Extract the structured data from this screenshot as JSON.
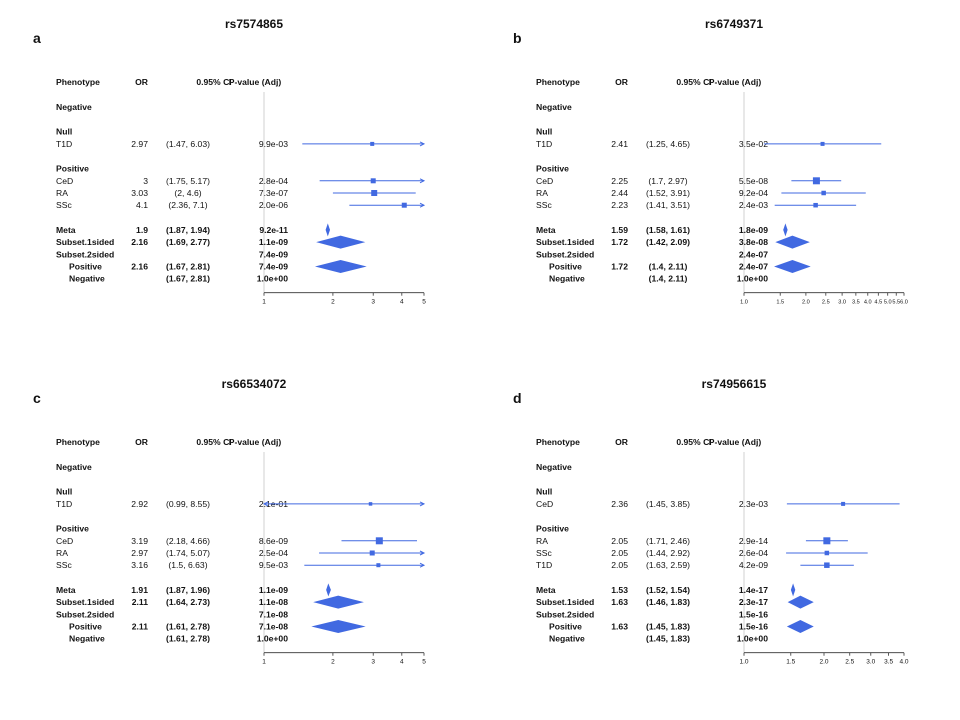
{
  "colors": {
    "mark": "#4169e1",
    "refline": "#d0d0d0",
    "text": "#111111"
  },
  "headers": {
    "phenotype": "Phenotype",
    "or": "OR",
    "ci": "0.95% CI",
    "p": "P-value (Adj)"
  },
  "chart_data": [
    {
      "type": "forest",
      "panel_letter": "a",
      "title": "rs7574865",
      "xscale": "log",
      "xlim": [
        1,
        5
      ],
      "ticks": [
        "1",
        "2",
        "3",
        "4",
        "5"
      ],
      "rows": [
        {
          "kind": "section",
          "label": "Negative"
        },
        {
          "kind": "gap"
        },
        {
          "kind": "section",
          "label": "Null"
        },
        {
          "kind": "study",
          "label": "T1D",
          "or": "2.97",
          "ci": "(1.47, 6.03)",
          "p": "9.9e-03",
          "est": 2.97,
          "lo": 1.47,
          "hi": 6.03,
          "w": 0.8
        },
        {
          "kind": "gap"
        },
        {
          "kind": "section",
          "label": "Positive"
        },
        {
          "kind": "study",
          "label": "CeD",
          "or": "3",
          "ci": "(1.75, 5.17)",
          "p": "2.8e-04",
          "est": 3.0,
          "lo": 1.75,
          "hi": 5.17,
          "w": 1.0
        },
        {
          "kind": "study",
          "label": "RA",
          "or": "3.03",
          "ci": "(2, 4.6)",
          "p": "7.3e-07",
          "est": 3.03,
          "lo": 2.0,
          "hi": 4.6,
          "w": 1.2
        },
        {
          "kind": "study",
          "label": "SSc",
          "or": "4.1",
          "ci": "(2.36, 7.1)",
          "p": "2.0e-06",
          "est": 4.1,
          "lo": 2.36,
          "hi": 7.1,
          "w": 1.0
        },
        {
          "kind": "gap"
        },
        {
          "kind": "summary",
          "label": "Meta",
          "or": "1.9",
          "ci": "(1.87, 1.94)",
          "p": "9.2e-11",
          "est": 1.9,
          "lo": 1.87,
          "hi": 1.94
        },
        {
          "kind": "summary",
          "label": "Subset.1sided",
          "or": "2.16",
          "ci": "(1.69, 2.77)",
          "p": "1.1e-09",
          "est": 2.16,
          "lo": 1.69,
          "hi": 2.77
        },
        {
          "kind": "summary",
          "label": "Subset.2sided",
          "or": "",
          "ci": "",
          "p": "7.4e-09"
        },
        {
          "kind": "summary",
          "label": "Positive",
          "indent": true,
          "or": "2.16",
          "ci": "(1.67, 2.81)",
          "p": "7.4e-09",
          "est": 2.16,
          "lo": 1.67,
          "hi": 2.81
        },
        {
          "kind": "summary",
          "label": "Negative",
          "indent": true,
          "or": "",
          "ci": "(1.67, 2.81)",
          "p": "1.0e+00"
        }
      ]
    },
    {
      "type": "forest",
      "panel_letter": "b",
      "title": "rs6749371",
      "xscale": "log",
      "xlim": [
        1,
        6
      ],
      "ticks": [
        "1.0",
        "1.5",
        "2.0",
        "2.5",
        "3.0",
        "3.5",
        "4.0",
        "4.5",
        "5.0",
        "5.5",
        "6.0"
      ],
      "rows": [
        {
          "kind": "section",
          "label": "Negative"
        },
        {
          "kind": "gap"
        },
        {
          "kind": "section",
          "label": "Null"
        },
        {
          "kind": "study",
          "label": "T1D",
          "or": "2.41",
          "ci": "(1.25, 4.65)",
          "p": "3.5e-02",
          "est": 2.41,
          "lo": 1.25,
          "hi": 4.65,
          "w": 0.8
        },
        {
          "kind": "gap"
        },
        {
          "kind": "section",
          "label": "Positive"
        },
        {
          "kind": "study",
          "label": "CeD",
          "or": "2.25",
          "ci": "(1.7, 2.97)",
          "p": "5.5e-08",
          "est": 2.25,
          "lo": 1.7,
          "hi": 2.97,
          "w": 1.4
        },
        {
          "kind": "study",
          "label": "RA",
          "or": "2.44",
          "ci": "(1.52, 3.91)",
          "p": "9.2e-04",
          "est": 2.44,
          "lo": 1.52,
          "hi": 3.91,
          "w": 0.9
        },
        {
          "kind": "study",
          "label": "SSc",
          "or": "2.23",
          "ci": "(1.41, 3.51)",
          "p": "2.4e-03",
          "est": 2.23,
          "lo": 1.41,
          "hi": 3.51,
          "w": 0.9
        },
        {
          "kind": "gap"
        },
        {
          "kind": "summary",
          "label": "Meta",
          "or": "1.59",
          "ci": "(1.58, 1.61)",
          "p": "1.8e-09",
          "est": 1.59,
          "lo": 1.58,
          "hi": 1.61
        },
        {
          "kind": "summary",
          "label": "Subset.1sided",
          "or": "1.72",
          "ci": "(1.42, 2.09)",
          "p": "3.8e-08",
          "est": 1.72,
          "lo": 1.42,
          "hi": 2.09
        },
        {
          "kind": "summary",
          "label": "Subset.2sided",
          "or": "",
          "ci": "",
          "p": "2.4e-07"
        },
        {
          "kind": "summary",
          "label": "Positive",
          "indent": true,
          "or": "1.72",
          "ci": "(1.4, 2.11)",
          "p": "2.4e-07",
          "est": 1.72,
          "lo": 1.4,
          "hi": 2.11
        },
        {
          "kind": "summary",
          "label": "Negative",
          "indent": true,
          "or": "",
          "ci": "(1.4, 2.11)",
          "p": "1.0e+00"
        }
      ]
    },
    {
      "type": "forest",
      "panel_letter": "c",
      "title": "rs66534072",
      "xscale": "log",
      "xlim": [
        1,
        5
      ],
      "ticks": [
        "1",
        "2",
        "3",
        "4",
        "5"
      ],
      "rows": [
        {
          "kind": "section",
          "label": "Negative"
        },
        {
          "kind": "gap"
        },
        {
          "kind": "section",
          "label": "Null"
        },
        {
          "kind": "study",
          "label": "T1D",
          "or": "2.92",
          "ci": "(0.99, 8.55)",
          "p": "2.1e-01",
          "est": 2.92,
          "lo": 0.99,
          "hi": 8.55,
          "w": 0.7
        },
        {
          "kind": "gap"
        },
        {
          "kind": "section",
          "label": "Positive"
        },
        {
          "kind": "study",
          "label": "CeD",
          "or": "3.19",
          "ci": "(2.18, 4.66)",
          "p": "8.6e-09",
          "est": 3.19,
          "lo": 2.18,
          "hi": 4.66,
          "w": 1.4
        },
        {
          "kind": "study",
          "label": "RA",
          "or": "2.97",
          "ci": "(1.74, 5.07)",
          "p": "2.5e-04",
          "est": 2.97,
          "lo": 1.74,
          "hi": 5.07,
          "w": 1.0
        },
        {
          "kind": "study",
          "label": "SSc",
          "or": "3.16",
          "ci": "(1.5, 6.63)",
          "p": "9.5e-03",
          "est": 3.16,
          "lo": 1.5,
          "hi": 6.63,
          "w": 0.8
        },
        {
          "kind": "gap"
        },
        {
          "kind": "summary",
          "label": "Meta",
          "or": "1.91",
          "ci": "(1.87, 1.96)",
          "p": "1.1e-09",
          "est": 1.91,
          "lo": 1.87,
          "hi": 1.96
        },
        {
          "kind": "summary",
          "label": "Subset.1sided",
          "or": "2.11",
          "ci": "(1.64, 2.73)",
          "p": "1.1e-08",
          "est": 2.11,
          "lo": 1.64,
          "hi": 2.73
        },
        {
          "kind": "summary",
          "label": "Subset.2sided",
          "or": "",
          "ci": "",
          "p": "7.1e-08"
        },
        {
          "kind": "summary",
          "label": "Positive",
          "indent": true,
          "or": "2.11",
          "ci": "(1.61, 2.78)",
          "p": "7.1e-08",
          "est": 2.11,
          "lo": 1.61,
          "hi": 2.78
        },
        {
          "kind": "summary",
          "label": "Negative",
          "indent": true,
          "or": "",
          "ci": "(1.61, 2.78)",
          "p": "1.0e+00"
        }
      ]
    },
    {
      "type": "forest",
      "panel_letter": "d",
      "title": "rs74956615",
      "xscale": "log",
      "xlim": [
        1,
        4
      ],
      "ticks": [
        "1.0",
        "1.5",
        "2.0",
        "2.5",
        "3.0",
        "3.5",
        "4.0"
      ],
      "rows": [
        {
          "kind": "section",
          "label": "Negative"
        },
        {
          "kind": "gap"
        },
        {
          "kind": "section",
          "label": "Null"
        },
        {
          "kind": "study",
          "label": "CeD",
          "or": "2.36",
          "ci": "(1.45, 3.85)",
          "p": "2.3e-03",
          "est": 2.36,
          "lo": 1.45,
          "hi": 3.85,
          "w": 0.8
        },
        {
          "kind": "gap"
        },
        {
          "kind": "section",
          "label": "Positive"
        },
        {
          "kind": "study",
          "label": "RA",
          "or": "2.05",
          "ci": "(1.71, 2.46)",
          "p": "2.9e-14",
          "est": 2.05,
          "lo": 1.71,
          "hi": 2.46,
          "w": 1.4
        },
        {
          "kind": "study",
          "label": "SSc",
          "or": "2.05",
          "ci": "(1.44, 2.92)",
          "p": "2.6e-04",
          "est": 2.05,
          "lo": 1.44,
          "hi": 2.92,
          "w": 0.9
        },
        {
          "kind": "study",
          "label": "T1D",
          "or": "2.05",
          "ci": "(1.63, 2.59)",
          "p": "4.2e-09",
          "est": 2.05,
          "lo": 1.63,
          "hi": 2.59,
          "w": 1.1
        },
        {
          "kind": "gap"
        },
        {
          "kind": "summary",
          "label": "Meta",
          "or": "1.53",
          "ci": "(1.52, 1.54)",
          "p": "1.4e-17",
          "est": 1.53,
          "lo": 1.52,
          "hi": 1.54
        },
        {
          "kind": "summary",
          "label": "Subset.1sided",
          "or": "1.63",
          "ci": "(1.46, 1.83)",
          "p": "2.3e-17",
          "est": 1.63,
          "lo": 1.46,
          "hi": 1.83
        },
        {
          "kind": "summary",
          "label": "Subset.2sided",
          "or": "",
          "ci": "",
          "p": "1.5e-16"
        },
        {
          "kind": "summary",
          "label": "Positive",
          "indent": true,
          "or": "1.63",
          "ci": "(1.45, 1.83)",
          "p": "1.5e-16",
          "est": 1.63,
          "lo": 1.45,
          "hi": 1.83
        },
        {
          "kind": "summary",
          "label": "Negative",
          "indent": true,
          "or": "",
          "ci": "(1.45, 1.83)",
          "p": "1.0e+00"
        }
      ]
    }
  ]
}
